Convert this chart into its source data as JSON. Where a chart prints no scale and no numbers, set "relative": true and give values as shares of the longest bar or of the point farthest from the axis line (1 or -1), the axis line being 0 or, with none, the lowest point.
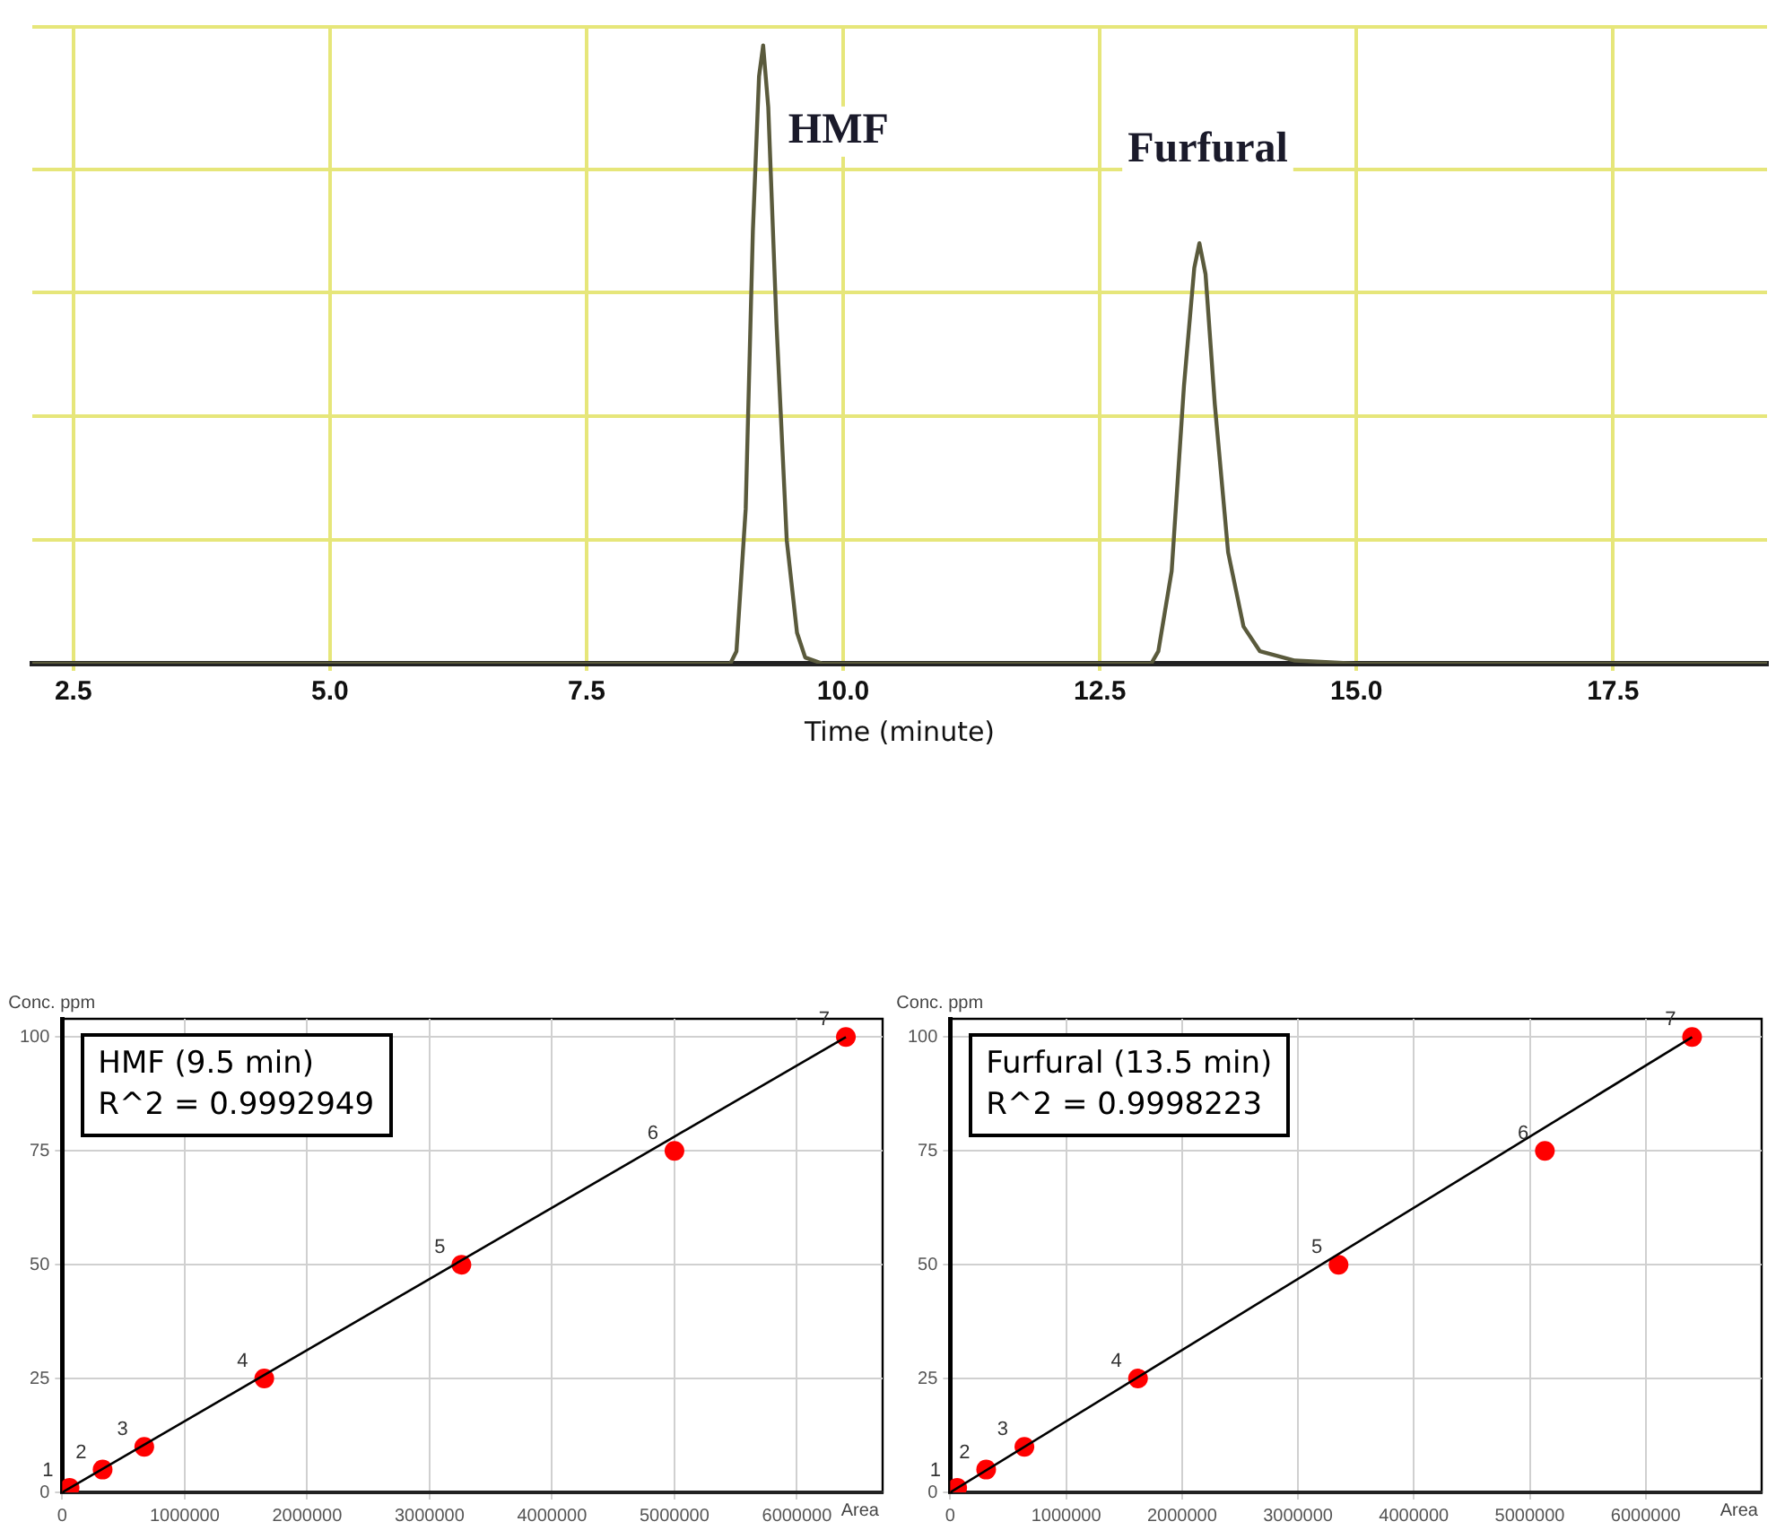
{
  "chart_data": [
    {
      "type": "line",
      "relative": true,
      "xlabel": "Time (minute)",
      "xlim": [
        2.1,
        19.0
      ],
      "xticks": [
        {
          "value": 2.5,
          "label": "2.5"
        },
        {
          "value": 5,
          "label": "5.0"
        },
        {
          "value": 7.5,
          "label": "7.5"
        },
        {
          "value": 10,
          "label": "10.0"
        },
        {
          "value": 12.5,
          "label": "12.5"
        },
        {
          "value": 15,
          "label": "15.0"
        },
        {
          "value": 17.5,
          "label": "17.5"
        }
      ],
      "grid": true,
      "marker": "none",
      "series": [
        {
          "color": "#5a5a3c",
          "x": [
            2.1,
            8.9,
            8.96,
            9.05,
            9.12,
            9.18,
            9.22,
            9.27,
            9.35,
            9.45,
            9.55,
            9.63,
            9.8,
            13.0,
            13.07,
            13.2,
            13.32,
            13.42,
            13.47,
            13.53,
            13.62,
            13.75,
            13.9,
            14.06,
            14.4,
            15.0,
            19.0
          ],
          "values": [
            0,
            0,
            0.02,
            0.25,
            0.7,
            0.95,
            1,
            0.9,
            0.55,
            0.2,
            0.05,
            0.01,
            0,
            0,
            0.02,
            0.15,
            0.45,
            0.64,
            0.68,
            0.63,
            0.42,
            0.18,
            0.06,
            0.02,
            0.005,
            0,
            0
          ]
        }
      ],
      "annotations": [
        {
          "text": "HMF",
          "x": 9.22,
          "y": 1
        },
        {
          "text": "Furfural",
          "x": 13.47,
          "y": 0.68
        }
      ]
    },
    {
      "type": "scatter",
      "xlabel": "Area",
      "ylabel": "Conc. ppm",
      "xlim": [
        0,
        6700000
      ],
      "ylim": [
        0,
        104
      ],
      "xticks": [
        0,
        1000000,
        2000000,
        3000000,
        4000000,
        5000000,
        6000000
      ],
      "yticks": [
        0,
        25,
        50,
        75,
        100
      ],
      "grid": true,
      "series": [
        {
          "type": "line",
          "color": "#000000",
          "marker": "none",
          "x": [
            0,
            6400000
          ],
          "values": [
            0,
            100
          ]
        },
        {
          "type": "scatter",
          "color": "#ff0000",
          "marker": "circle",
          "x": [
            60000,
            330000,
            670000,
            1650000,
            3260000,
            5000000,
            6400000
          ],
          "values": [
            1,
            5,
            10,
            25,
            50,
            75,
            100
          ]
        }
      ],
      "annotations": [
        "HMF (9.5 min)",
        "R^2 = 0.9992949",
        {
          "text": "1",
          "x": 60000,
          "y": 1
        },
        {
          "text": "2",
          "x": 330000,
          "y": 5
        },
        {
          "text": "3",
          "x": 670000,
          "y": 10
        },
        {
          "text": "4",
          "x": 1650000,
          "y": 25
        },
        {
          "text": "5",
          "x": 3260000,
          "y": 50
        },
        {
          "text": "6",
          "x": 5000000,
          "y": 75
        },
        {
          "text": "7",
          "x": 6400000,
          "y": 100
        }
      ]
    },
    {
      "type": "scatter",
      "xlabel": "Area",
      "ylabel": "Conc. ppm",
      "xlim": [
        0,
        7000000
      ],
      "ylim": [
        0,
        104
      ],
      "xticks": [
        0,
        1000000,
        2000000,
        3000000,
        4000000,
        5000000,
        6000000
      ],
      "yticks": [
        0,
        25,
        50,
        75,
        100
      ],
      "grid": true,
      "series": [
        {
          "type": "line",
          "color": "#000000",
          "marker": "none",
          "x": [
            0,
            6400000
          ],
          "values": [
            0,
            100
          ]
        },
        {
          "type": "scatter",
          "color": "#ff0000",
          "marker": "circle",
          "x": [
            60000,
            310000,
            640000,
            1620000,
            3350000,
            5130000,
            6400000
          ],
          "values": [
            1,
            5,
            10,
            25,
            50,
            75,
            100
          ]
        }
      ],
      "annotations": [
        "Furfural (13.5 min)",
        "R^2 = 0.9998223",
        {
          "text": "1",
          "x": 60000,
          "y": 1
        },
        {
          "text": "2",
          "x": 310000,
          "y": 5
        },
        {
          "text": "3",
          "x": 640000,
          "y": 10
        },
        {
          "text": "4",
          "x": 1620000,
          "y": 25
        },
        {
          "text": "5",
          "x": 3350000,
          "y": 50
        },
        {
          "text": "6",
          "x": 5130000,
          "y": 75
        },
        {
          "text": "7",
          "x": 6400000,
          "y": 100
        }
      ]
    }
  ]
}
